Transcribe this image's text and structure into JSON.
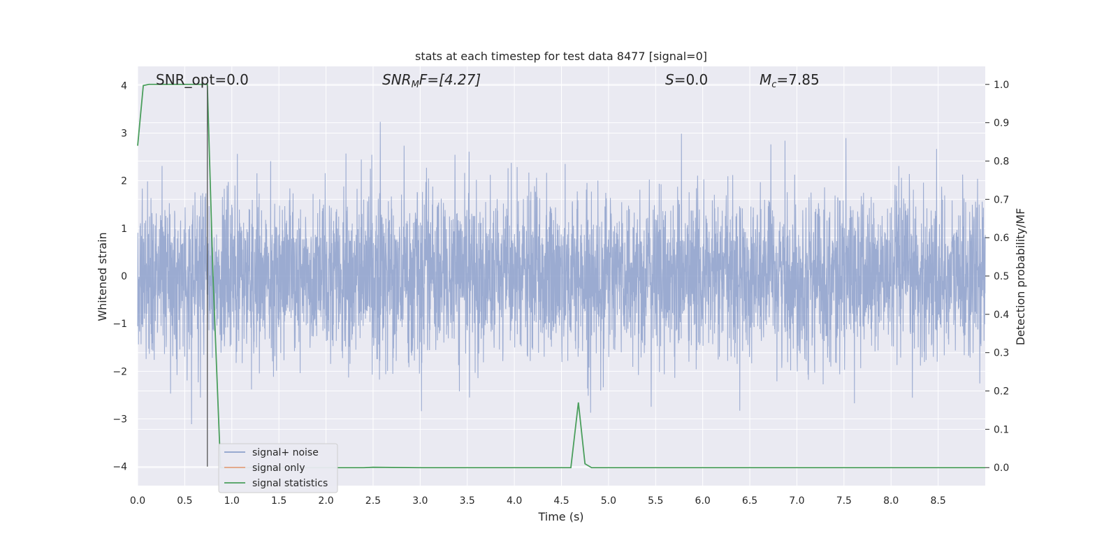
{
  "chart_data": {
    "type": "line",
    "title": "stats at each timestep for test data 8477 [signal=0]",
    "xlabel": "Time (s)",
    "ylabel": "Whitened strain",
    "ylabel_right": "Detection probability/MF",
    "xlim": [
      0.0,
      9.0
    ],
    "ylim": [
      -4.4,
      4.4
    ],
    "ylim_right": [
      -0.047,
      1.047
    ],
    "x_ticks": [
      "0.0",
      "0.5",
      "1.0",
      "1.5",
      "2.0",
      "2.5",
      "3.0",
      "3.5",
      "4.0",
      "4.5",
      "5.0",
      "5.5",
      "6.0",
      "6.5",
      "7.0",
      "7.5",
      "8.0",
      "8.5"
    ],
    "y_ticks": [
      "−4",
      "−3",
      "−2",
      "−1",
      "0",
      "1",
      "2",
      "3",
      "4"
    ],
    "y_right_ticks": [
      "0.0",
      "0.1",
      "0.2",
      "0.3",
      "0.4",
      "0.5",
      "0.6",
      "0.7",
      "0.8",
      "0.9",
      "1.0"
    ],
    "grid": true,
    "legend_position": "lower-left",
    "annotations": {
      "snr_opt": "SNR_opt=0.0",
      "snr_mf_base": "SNR",
      "snr_mf_sub": "M",
      "snr_mf_rest": "F=[4.27]",
      "s_label": "S",
      "s_value": "=0.0",
      "mc_base": "M",
      "mc_sub": "c",
      "mc_value": "=7.85"
    },
    "colors": {
      "noise": "#8da0cb",
      "signal_only": "#e3a27f",
      "statistics": "#4a9e5c",
      "marker": "#555555",
      "background": "#eaeaf2",
      "grid": "#ffffff"
    },
    "series": [
      {
        "name": "signal+ noise",
        "type": "noise",
        "amplitude_std": 0.85,
        "x_range": [
          0.0,
          9.0
        ]
      },
      {
        "name": "signal only",
        "values": []
      },
      {
        "name": "signal statistics",
        "axis": "right",
        "x": [
          0.0,
          0.06,
          0.12,
          0.5,
          0.74,
          0.8,
          0.88,
          1.0,
          2.4,
          2.5,
          3.0,
          4.6,
          4.68,
          4.75,
          4.82,
          9.0
        ],
        "y": [
          0.84,
          0.997,
          1.0,
          1.0,
          1.0,
          0.5,
          0.0,
          0.0,
          0.0,
          0.001,
          0.0,
          0.0,
          0.17,
          0.01,
          0.0,
          0.0
        ]
      }
    ],
    "vertical_marker": {
      "x": 0.74,
      "y_from": -4.0,
      "y_to": 4.0
    }
  }
}
